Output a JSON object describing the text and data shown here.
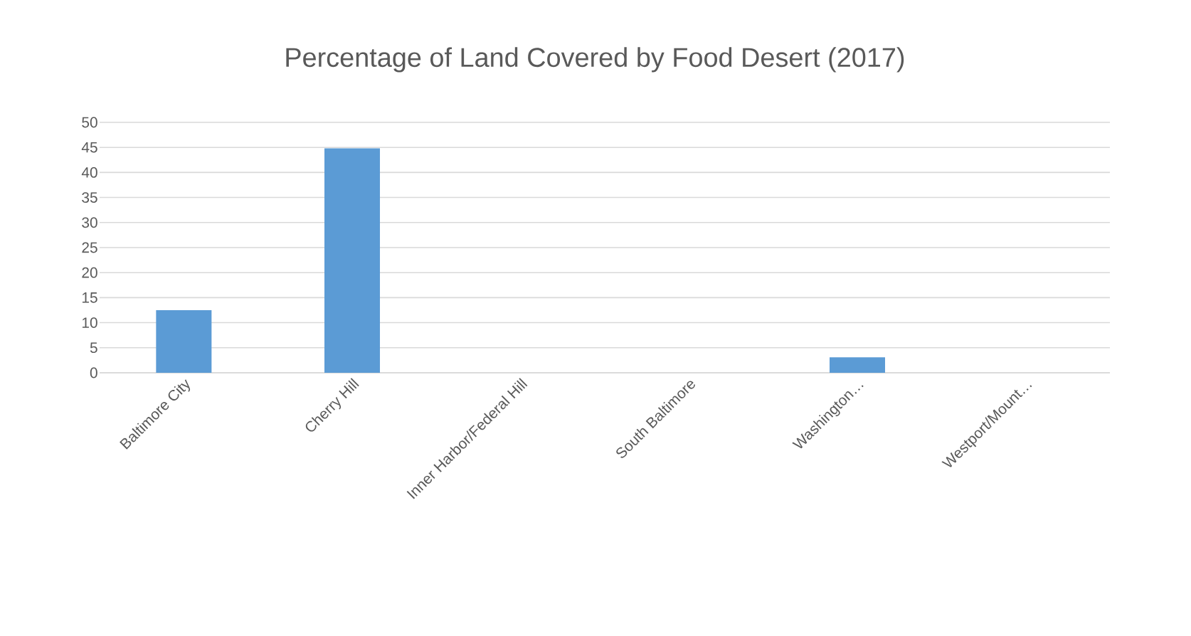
{
  "chart_data": {
    "type": "bar",
    "title": "Percentage of Land Covered by Food Desert (2017)",
    "categories": [
      "Baltimore City",
      "Cherry Hill",
      "Inner Harbor/Federal Hill",
      "South Baltimore",
      "Washington…",
      "Westport/Mount…"
    ],
    "values": [
      12.5,
      44.8,
      0,
      0,
      3.1,
      0
    ],
    "color": "#5b9bd5",
    "ylim": [
      0,
      50
    ],
    "yticks": [
      0,
      5,
      10,
      15,
      20,
      25,
      30,
      35,
      40,
      45,
      50
    ],
    "grid": "y"
  }
}
